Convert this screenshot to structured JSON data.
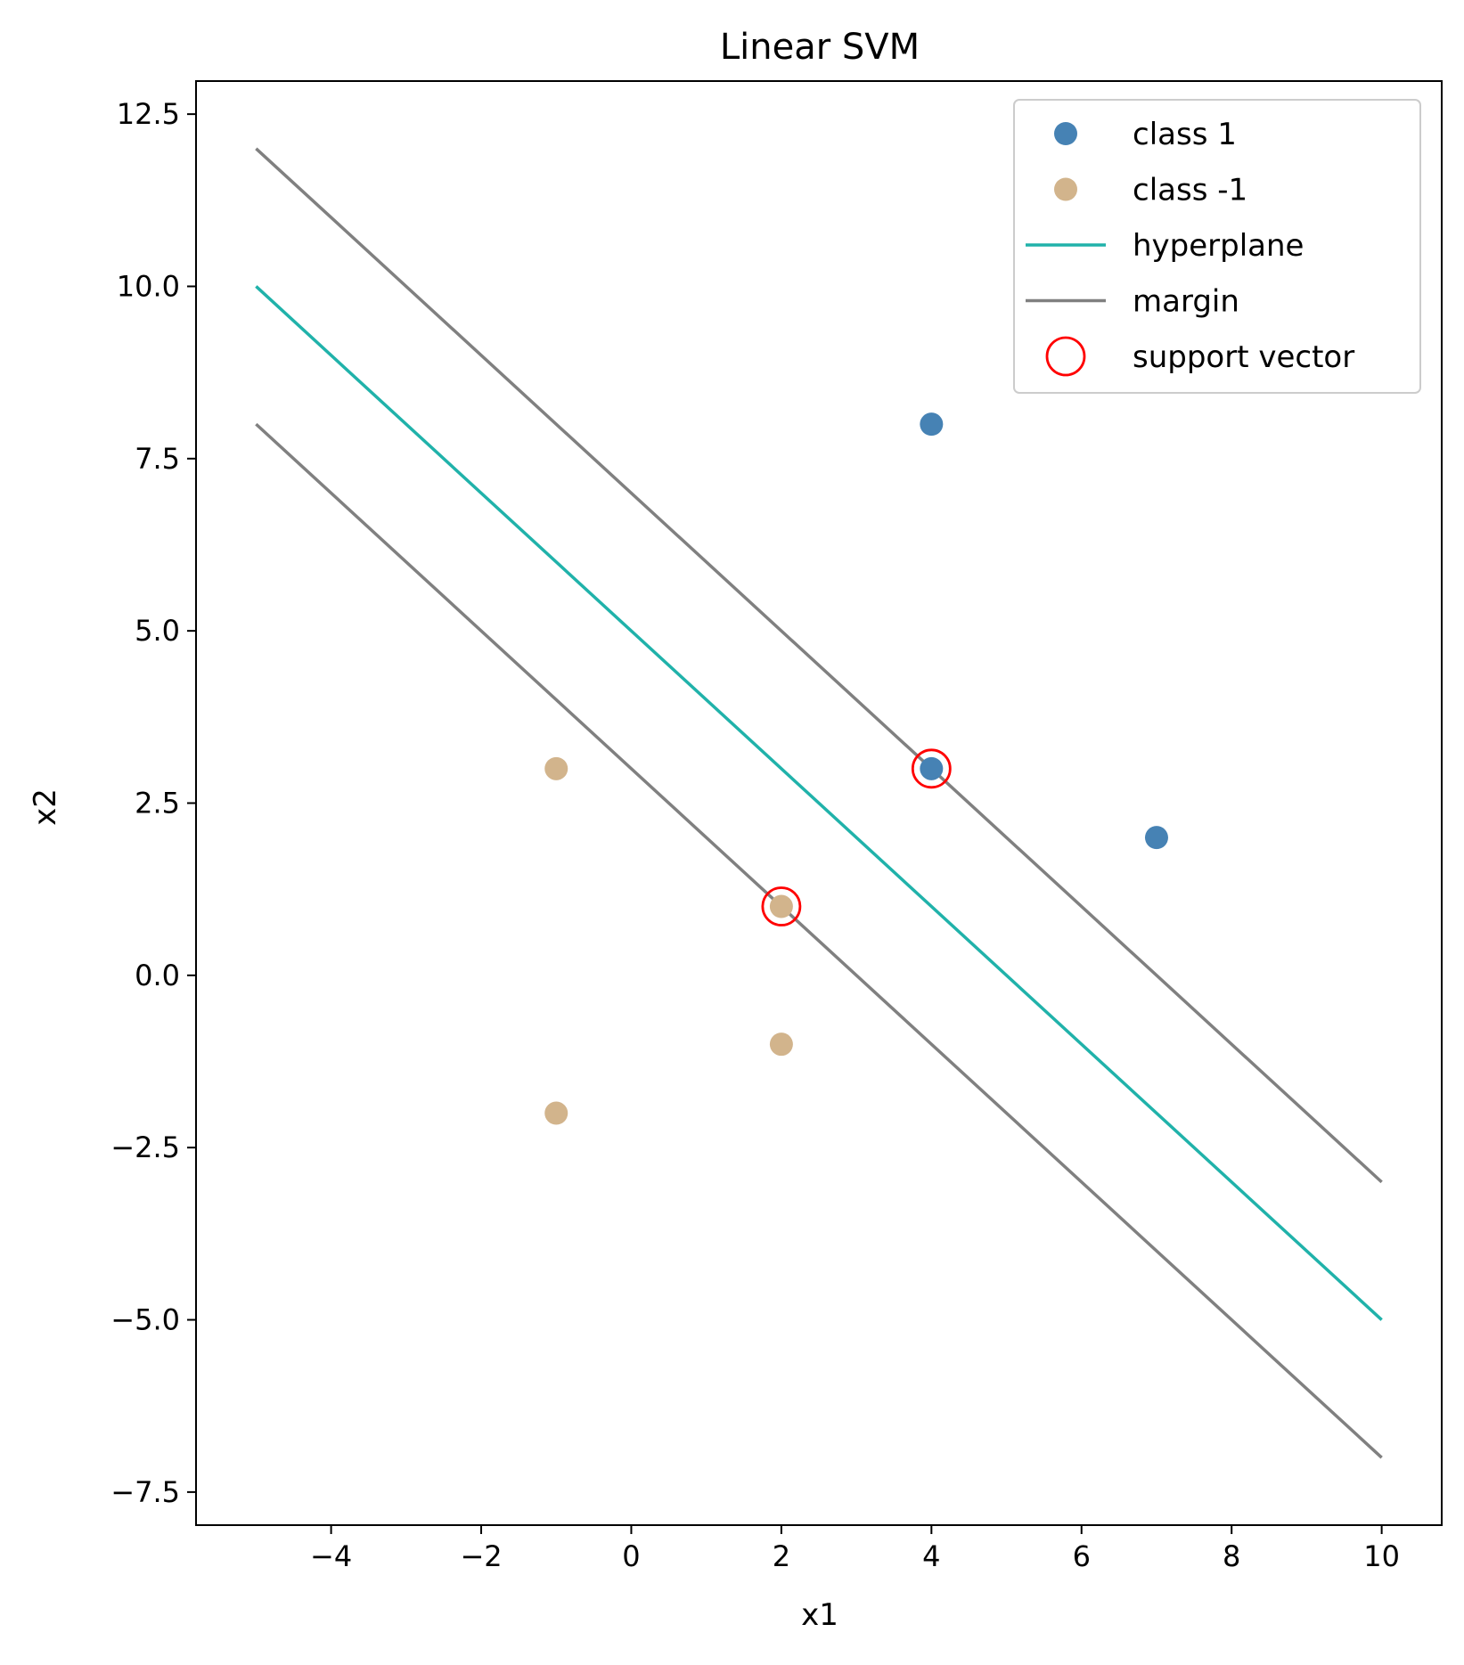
{
  "chart_data": {
    "type": "scatter",
    "title": "Linear SVM",
    "xlabel": "x1",
    "ylabel": "x2",
    "xlim": [
      -5.8,
      10.8
    ],
    "ylim": [
      -7.98,
      12.98
    ],
    "xticks": [
      -4,
      -2,
      0,
      2,
      4,
      6,
      8,
      10
    ],
    "xtick_labels": [
      "−4",
      "−2",
      "0",
      "2",
      "4",
      "6",
      "8",
      "10"
    ],
    "yticks": [
      -7.5,
      -5.0,
      -2.5,
      0.0,
      2.5,
      5.0,
      7.5,
      10.0,
      12.5
    ],
    "ytick_labels": [
      "−7.5",
      "−5.0",
      "−2.5",
      "0.0",
      "2.5",
      "5.0",
      "7.5",
      "10.0",
      "12.5"
    ],
    "grid": false,
    "legend_position": "top-right",
    "series": [
      {
        "name": "class 1",
        "kind": "scatter",
        "color": "#4682b4",
        "points": [
          [
            4,
            8
          ],
          [
            4,
            3
          ],
          [
            7,
            2
          ]
        ]
      },
      {
        "name": "class -1",
        "kind": "scatter",
        "color": "#d2b48c",
        "points": [
          [
            -1,
            3
          ],
          [
            2,
            1
          ],
          [
            2,
            -1
          ],
          [
            -1,
            -2
          ]
        ]
      },
      {
        "name": "hyperplane",
        "kind": "line",
        "color": "#20b2aa",
        "points": [
          [
            -5,
            10
          ],
          [
            10,
            -5
          ]
        ]
      },
      {
        "name": "margin",
        "kind": "line",
        "color": "#808080",
        "points": [
          [
            -5,
            12
          ],
          [
            10,
            -3
          ]
        ]
      },
      {
        "name": "",
        "kind": "line",
        "color": "#808080",
        "points": [
          [
            -5,
            8
          ],
          [
            10,
            -7
          ]
        ]
      },
      {
        "name": "support vector",
        "kind": "circle",
        "color": "#ff0000",
        "points": [
          [
            4,
            3
          ],
          [
            2,
            1
          ]
        ]
      }
    ],
    "legend": [
      {
        "label": "class 1",
        "kind": "scatter",
        "color": "#4682b4"
      },
      {
        "label": "class -1",
        "kind": "scatter",
        "color": "#d2b48c"
      },
      {
        "label": "hyperplane",
        "kind": "line",
        "color": "#20b2aa"
      },
      {
        "label": "margin",
        "kind": "line",
        "color": "#808080"
      },
      {
        "label": "support vector",
        "kind": "circle",
        "color": "#ff0000"
      }
    ]
  }
}
